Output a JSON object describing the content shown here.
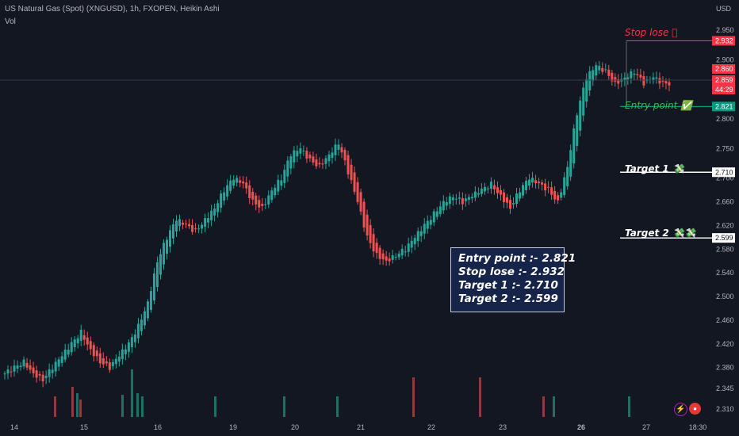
{
  "header": {
    "title": "US Natural Gas (Spot) (XNGUSD), 1h, FXOPEN, Heikin Ashi",
    "vol_label": "Vol",
    "currency": "USD"
  },
  "price_axis": {
    "ticks": [
      "2.950",
      "2.900",
      "2.850",
      "2.800",
      "2.750",
      "2.710",
      "2.700",
      "2.660",
      "2.620",
      "2.580",
      "2.540",
      "2.500",
      "2.460",
      "2.420",
      "2.380",
      "2.345",
      "2.310"
    ]
  },
  "time_axis": {
    "ticks": [
      "14",
      "15",
      "16",
      "19",
      "20",
      "21",
      "22",
      "23",
      "26",
      "27",
      "18:30"
    ]
  },
  "price_tags": {
    "stop": "2.932",
    "high": "2.860",
    "current": "2.859",
    "countdown": "44:29",
    "entry": "2.821",
    "target1": "2.710",
    "target2": "2.599"
  },
  "annotations": {
    "stop_label": "Stop lose ⃠",
    "stop_icon": "no-entry-icon",
    "entry_label": "Entry point ✅",
    "target1_label": "Target 1 💸",
    "target2_label": "Target 2 💸💸"
  },
  "info_box": {
    "line1": "Entry point :- 2.821",
    "line2": "Stop lose :- 2.932",
    "line3": "Target 1 :- 2.710",
    "line4": "Target 2 :- 2.599"
  },
  "colors": {
    "background": "#131722",
    "up": "#26a69a",
    "down": "#ef5350",
    "stop": "#f23645",
    "entry": "#089981",
    "target": "#ffffff",
    "info_bg": "#16244a"
  },
  "chart_data": {
    "type": "candlestick",
    "style": "Heikin Ashi",
    "symbol": "XNGUSD",
    "interval": "1h",
    "close_approx": [
      2.37,
      2.38,
      2.39,
      2.37,
      2.36,
      2.38,
      2.4,
      2.42,
      2.44,
      2.41,
      2.39,
      2.38,
      2.4,
      2.42,
      2.45,
      2.49,
      2.56,
      2.6,
      2.63,
      2.62,
      2.61,
      2.63,
      2.65,
      2.68,
      2.7,
      2.69,
      2.66,
      2.65,
      2.68,
      2.7,
      2.74,
      2.75,
      2.73,
      2.72,
      2.74,
      2.76,
      2.71,
      2.66,
      2.6,
      2.57,
      2.56,
      2.57,
      2.58,
      2.6,
      2.62,
      2.64,
      2.66,
      2.67,
      2.66,
      2.67,
      2.68,
      2.69,
      2.67,
      2.65,
      2.68,
      2.7,
      2.69,
      2.68,
      2.66,
      2.72,
      2.81,
      2.87,
      2.89,
      2.88,
      2.86,
      2.87,
      2.88,
      2.86,
      2.87,
      2.86,
      2.86
    ],
    "levels": {
      "stop_loss": 2.932,
      "entry": 2.821,
      "target_1": 2.71,
      "target_2": 2.599
    },
    "ylim": [
      2.3,
      2.97
    ],
    "grid": false
  }
}
